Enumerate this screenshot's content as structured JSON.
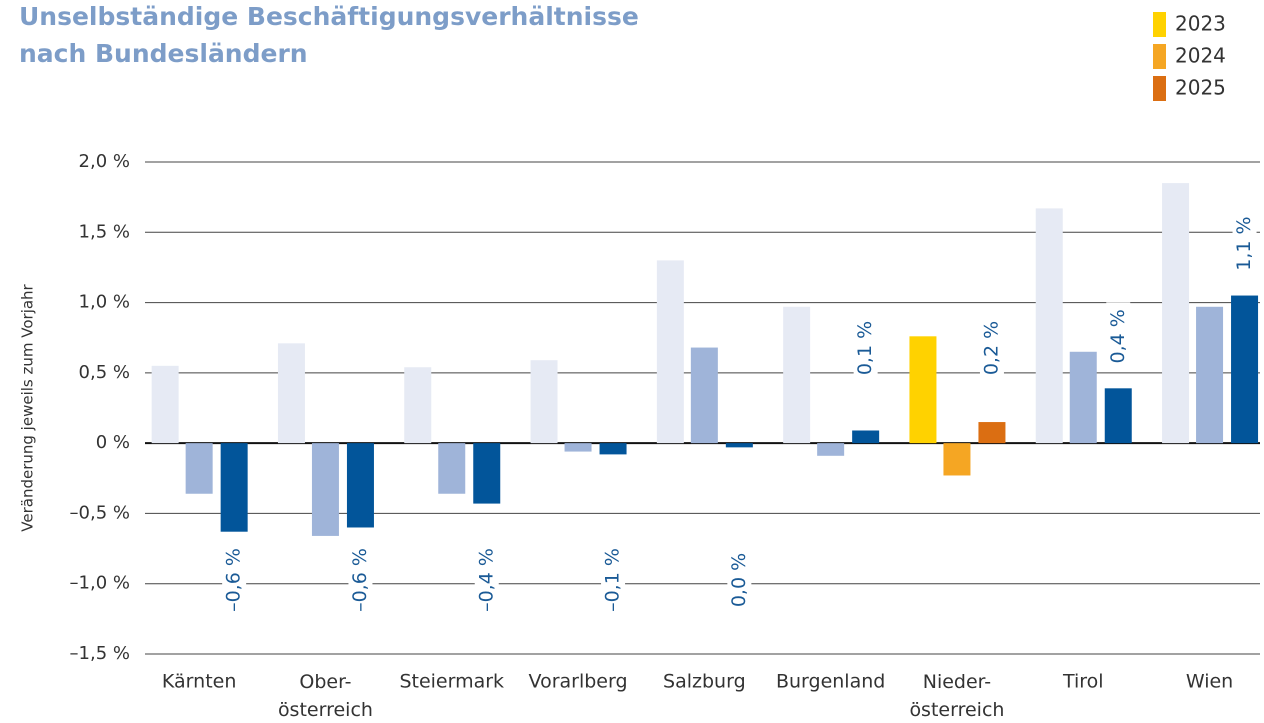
{
  "chart_data": {
    "type": "bar",
    "title": [
      "Unselbständige Beschäftigungsverhältnisse",
      "nach Bundesländern"
    ],
    "y_label": "Veränderung jeweils zum Vorjahr",
    "categories": [
      "Kärnten",
      "Ober-\nösterreich",
      "Steiermark",
      "Vorarlberg",
      "Salzburg",
      "Burgenland",
      "Nieder-\nösterreich",
      "Tirol",
      "Wien"
    ],
    "series": [
      {
        "name": "2023",
        "color": "#ffd200",
        "colors": [
          "#e6eaf4",
          "#e6eaf4",
          "#e6eaf4",
          "#e6eaf4",
          "#e6eaf4",
          "#e6eaf4",
          "#ffd200",
          "#e6eaf4",
          "#e6eaf4"
        ],
        "values": [
          0.55,
          0.71,
          0.54,
          0.59,
          1.3,
          0.97,
          0.76,
          1.67,
          1.85
        ]
      },
      {
        "name": "2024",
        "color": "#f5a623",
        "colors": [
          "#9fb4d9",
          "#9fb4d9",
          "#9fb4d9",
          "#9fb4d9",
          "#9fb4d9",
          "#9fb4d9",
          "#f5a623",
          "#9fb4d9",
          "#9fb4d9"
        ],
        "values": [
          -0.36,
          -0.66,
          -0.36,
          -0.06,
          0.68,
          -0.09,
          -0.23,
          0.65,
          0.97
        ]
      },
      {
        "name": "2025",
        "color": "#db6e12",
        "colors": [
          "#02559a",
          "#02559a",
          "#02559a",
          "#02559a",
          "#02559a",
          "#02559a",
          "#db6e12",
          "#02559a",
          "#02559a"
        ],
        "values": [
          -0.63,
          -0.6,
          -0.43,
          -0.08,
          -0.03,
          0.09,
          0.15,
          0.39,
          1.05
        ],
        "value_labels": [
          "–0,6 %",
          "–0,6 %",
          "–0,4 %",
          "–0,1 %",
          "0,0 %",
          "0,1 %",
          "0,2 %",
          "0,4 %",
          "1,1 %"
        ]
      }
    ],
    "ylim": [
      -1.5,
      2.0
    ],
    "yticks": [
      {
        "value": -1.5,
        "label": "–1,5 %"
      },
      {
        "value": -1.0,
        "label": "–1,0 %"
      },
      {
        "value": -0.5,
        "label": "–0,5 %"
      },
      {
        "value": 0,
        "label": "0 %"
      },
      {
        "value": 0.5,
        "label": "0,5 %"
      },
      {
        "value": 1.0,
        "label": "1,0 %"
      },
      {
        "value": 1.5,
        "label": "1,5 %"
      },
      {
        "value": 2.0,
        "label": "2,0 %"
      }
    ],
    "grid": true
  }
}
